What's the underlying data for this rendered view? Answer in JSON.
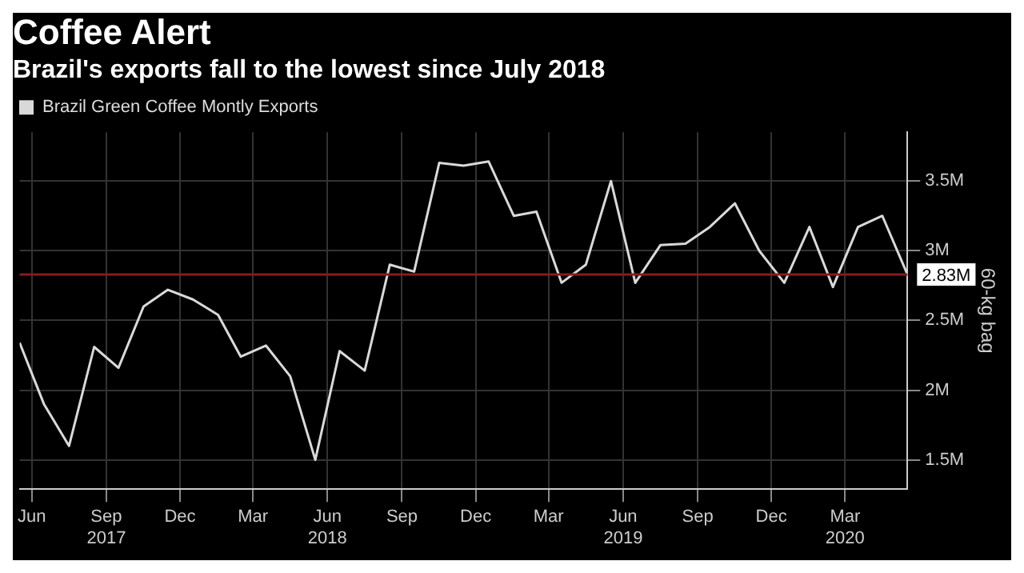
{
  "chart_data": {
    "type": "line",
    "title": "Coffee Alert",
    "subtitle": "Brazil's exports fall to the lowest since July 2018",
    "ylabel": "60-kg bag",
    "x": [
      "2017-05-31",
      "2017-06-30",
      "2017-07-31",
      "2017-08-31",
      "2017-09-30",
      "2017-10-31",
      "2017-11-30",
      "2017-12-31",
      "2018-01-31",
      "2018-02-28",
      "2018-03-31",
      "2018-04-30",
      "2018-05-31",
      "2018-06-30",
      "2018-07-31",
      "2018-08-31",
      "2018-09-30",
      "2018-10-31",
      "2018-11-30",
      "2018-12-31",
      "2019-01-31",
      "2019-02-28",
      "2019-03-31",
      "2019-04-30",
      "2019-05-31",
      "2019-06-30",
      "2019-07-31",
      "2019-08-31",
      "2019-09-30",
      "2019-10-31",
      "2019-11-30",
      "2019-12-31",
      "2020-01-31",
      "2020-02-29",
      "2020-03-31",
      "2020-04-30",
      "2020-05-31"
    ],
    "series": [
      {
        "name": "Brazil Green Coffee Montly Exports",
        "color": "#d9d9d9",
        "values": [
          2.34,
          1.9,
          1.6,
          2.31,
          2.16,
          2.6,
          2.72,
          2.65,
          2.54,
          2.24,
          2.32,
          2.1,
          1.5,
          2.28,
          2.14,
          2.9,
          2.85,
          3.63,
          3.61,
          3.64,
          3.25,
          3.28,
          2.77,
          2.9,
          3.5,
          2.77,
          3.04,
          3.05,
          3.17,
          3.34,
          3.0,
          2.77,
          3.17,
          2.74,
          3.17,
          3.25,
          2.83
        ]
      }
    ],
    "xlim": [
      "2017-05-31",
      "2020-05-31"
    ],
    "xticks": [
      {
        "value": "2017-06-15",
        "label": "Jun"
      },
      {
        "value": "2017-09-15",
        "label": "Sep\n2017"
      },
      {
        "value": "2017-12-15",
        "label": "Dec"
      },
      {
        "value": "2018-03-15",
        "label": "Mar"
      },
      {
        "value": "2018-06-15",
        "label": "Jun\n2018"
      },
      {
        "value": "2018-09-15",
        "label": "Sep"
      },
      {
        "value": "2018-12-15",
        "label": "Dec"
      },
      {
        "value": "2019-03-15",
        "label": "Mar"
      },
      {
        "value": "2019-06-15",
        "label": "Jun\n2019"
      },
      {
        "value": "2019-09-15",
        "label": "Sep"
      },
      {
        "value": "2019-12-15",
        "label": "Dec"
      },
      {
        "value": "2020-03-15",
        "label": "Mar\n2020"
      }
    ],
    "ylim": [
      1.29,
      3.85
    ],
    "yticks": [
      {
        "value": 1.5,
        "label": "1.5M"
      },
      {
        "value": 2,
        "label": "2M"
      },
      {
        "value": 2.5,
        "label": "2.5M"
      },
      {
        "value": 3,
        "label": "3M"
      },
      {
        "value": 3.5,
        "label": "3.5M"
      }
    ],
    "ref_lines": [
      {
        "axis": "y",
        "value": 2.83,
        "label": "2.83M",
        "color": "#8b1a1a"
      }
    ],
    "grid": true,
    "legend": "top left",
    "marker": "none",
    "line_style": "solid"
  }
}
